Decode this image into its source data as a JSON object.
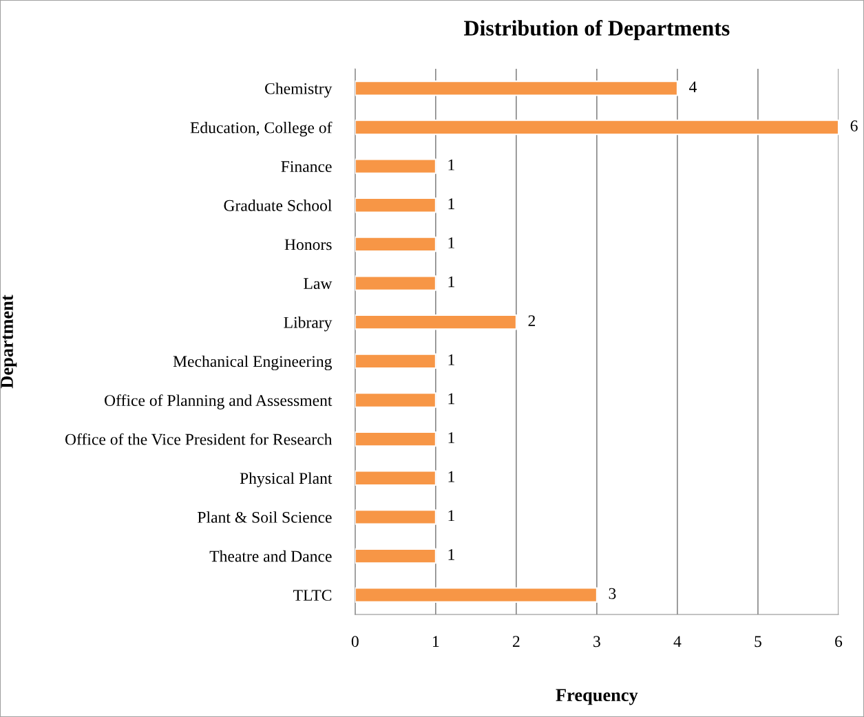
{
  "chart_data": {
    "type": "bar",
    "orientation": "horizontal",
    "title": "Distribution of Departments",
    "xlabel": "Frequency",
    "ylabel": "Department",
    "categories": [
      "Chemistry",
      "Education, College of",
      "Finance",
      "Graduate School",
      "Honors",
      "Law",
      "Library",
      "Mechanical Engineering",
      "Office of Planning and Assessment",
      "Office of the Vice President for Research",
      "Physical Plant",
      "Plant & Soil Science",
      "Theatre and Dance",
      "TLTC"
    ],
    "values": [
      4,
      6,
      1,
      1,
      1,
      1,
      2,
      1,
      1,
      1,
      1,
      1,
      1,
      3
    ],
    "color": "#f79646",
    "xlim": [
      0,
      6
    ],
    "xticks": [
      0,
      1,
      2,
      3,
      4,
      5,
      6
    ],
    "grid": "x",
    "data_labels": true
  }
}
